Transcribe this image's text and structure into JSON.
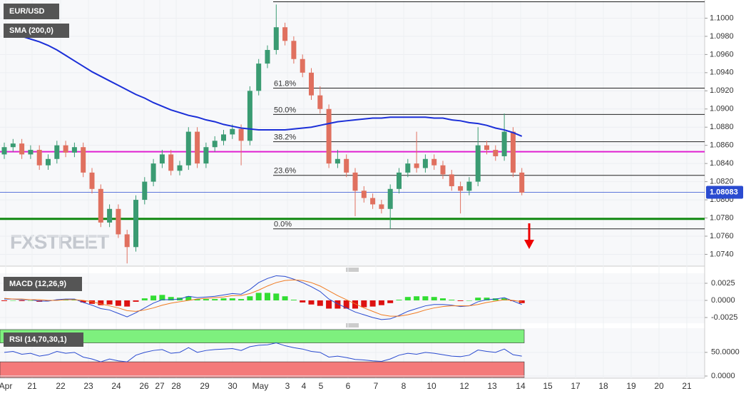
{
  "chart_data": [
    {
      "type": "candlestick",
      "title": "EUR/USD",
      "sma_name": "SMA (200,0)",
      "sma_color": "#1b2fd8",
      "up_color": "#3a9b72",
      "down_color": "#e0705f",
      "watermark": "FXSTREET",
      "ylim": [
        1.0727,
        1.102
      ],
      "yticks": [
        {
          "value": 1.1,
          "label": "1.1000"
        },
        {
          "value": 1.098,
          "label": "1.0980"
        },
        {
          "value": 1.096,
          "label": "1.0960"
        },
        {
          "value": 1.094,
          "label": "1.0940"
        },
        {
          "value": 1.092,
          "label": "1.0920"
        },
        {
          "value": 1.09,
          "label": "1.0900"
        },
        {
          "value": 1.088,
          "label": "1.0880"
        },
        {
          "value": 1.086,
          "label": "1.0860"
        },
        {
          "value": 1.084,
          "label": "1.0840"
        },
        {
          "value": 1.082,
          "label": "1.0820"
        },
        {
          "value": 1.08,
          "label": "1.0800"
        },
        {
          "value": 1.078,
          "label": "1.0780"
        },
        {
          "value": 1.076,
          "label": "1.0760"
        },
        {
          "value": 1.074,
          "label": "1.0740"
        }
      ],
      "xlabels": [
        "Apr",
        "21",
        "22",
        "23",
        "24",
        "26",
        "27",
        "28",
        "29",
        "30",
        "May",
        "3",
        "4",
        "5",
        "6",
        "7",
        "8",
        "10",
        "12",
        "13",
        "14",
        "15",
        "17",
        "18",
        "19",
        "20",
        "21"
      ],
      "open": [
        1.085,
        1.0858,
        1.0862,
        1.085,
        1.0855,
        1.0838,
        1.0845,
        1.086,
        1.0852,
        1.0858,
        1.083,
        1.0812,
        1.0775,
        1.079,
        1.0762,
        1.0748,
        1.08,
        1.082,
        1.084,
        1.085,
        1.0832,
        1.0838,
        1.0875,
        1.084,
        1.0858,
        1.0865,
        1.0872,
        1.0878,
        1.0865,
        1.092,
        1.095,
        1.0965,
        1.099,
        1.0975,
        1.0955,
        1.094,
        1.0915,
        1.09,
        1.084,
        1.0845,
        1.083,
        1.081,
        1.0802,
        1.0795,
        1.079,
        1.0812,
        1.083,
        1.084,
        1.0835,
        1.0845,
        1.0838,
        1.0828,
        1.0815,
        1.081,
        1.082,
        1.086,
        1.0855,
        1.0848,
        1.0875,
        1.083
      ],
      "high": [
        1.0863,
        1.0867,
        1.0867,
        1.086,
        1.086,
        1.085,
        1.0865,
        1.0865,
        1.0863,
        1.0863,
        1.0835,
        1.0817,
        1.0795,
        1.0795,
        1.0767,
        1.0805,
        1.0825,
        1.0845,
        1.0855,
        1.0855,
        1.0843,
        1.088,
        1.088,
        1.0863,
        1.087,
        1.0877,
        1.0883,
        1.0883,
        1.0925,
        1.0955,
        1.097,
        1.1015,
        1.0995,
        1.098,
        1.096,
        1.0945,
        1.0925,
        1.0905,
        1.0855,
        1.085,
        1.0835,
        1.0815,
        1.0807,
        1.08,
        1.0817,
        1.0835,
        1.0845,
        1.0875,
        1.085,
        1.085,
        1.0843,
        1.0833,
        1.082,
        1.0825,
        1.088,
        1.0865,
        1.086,
        1.0895,
        1.088,
        1.0835
      ],
      "low": [
        1.0845,
        1.0853,
        1.0845,
        1.0845,
        1.0833,
        1.0833,
        1.084,
        1.0847,
        1.0847,
        1.0825,
        1.0807,
        1.077,
        1.077,
        1.0758,
        1.073,
        1.0743,
        1.0795,
        1.0815,
        1.0835,
        1.0827,
        1.0827,
        1.0833,
        1.0835,
        1.0835,
        1.0853,
        1.086,
        1.0867,
        1.0838,
        1.086,
        1.0915,
        1.0945,
        1.096,
        1.097,
        1.095,
        1.0935,
        1.091,
        1.0895,
        1.0835,
        1.0835,
        1.0825,
        1.0782,
        1.0797,
        1.079,
        1.0785,
        1.0768,
        1.0807,
        1.0825,
        1.083,
        1.083,
        1.0833,
        1.0823,
        1.081,
        1.0785,
        1.0805,
        1.0815,
        1.085,
        1.0843,
        1.0843,
        1.0825,
        1.0805
      ],
      "close": [
        1.0858,
        1.0862,
        1.085,
        1.0855,
        1.0838,
        1.0845,
        1.086,
        1.0852,
        1.0858,
        1.083,
        1.0812,
        1.0775,
        1.079,
        1.0762,
        1.0748,
        1.08,
        1.082,
        1.084,
        1.085,
        1.0832,
        1.0838,
        1.0875,
        1.084,
        1.0858,
        1.0865,
        1.0872,
        1.0878,
        1.0865,
        1.092,
        1.095,
        1.0965,
        1.099,
        1.0975,
        1.0955,
        1.094,
        1.0915,
        1.09,
        1.084,
        1.0845,
        1.083,
        1.081,
        1.0802,
        1.0795,
        1.079,
        1.0812,
        1.083,
        1.084,
        1.0835,
        1.0845,
        1.0838,
        1.0828,
        1.0815,
        1.081,
        1.082,
        1.086,
        1.0855,
        1.0848,
        1.0875,
        1.083,
        1.0808
      ],
      "sma": [
        1.0987,
        1.0984,
        1.098,
        1.0977,
        1.0974,
        1.097,
        1.0965,
        1.0959,
        1.0953,
        1.0947,
        1.0941,
        1.0936,
        1.0931,
        1.0926,
        1.0921,
        1.0916,
        1.0912,
        1.0907,
        1.0903,
        1.0899,
        1.0896,
        1.0893,
        1.0891,
        1.0888,
        1.0886,
        1.0883,
        1.0881,
        1.0879,
        1.0878,
        1.0877,
        1.0877,
        1.0877,
        1.0877,
        1.0878,
        1.0879,
        1.088,
        1.0882,
        1.0884,
        1.0886,
        1.0887,
        1.0888,
        1.0889,
        1.089,
        1.089,
        1.0891,
        1.0891,
        1.0891,
        1.0891,
        1.0891,
        1.089,
        1.089,
        1.0888,
        1.0887,
        1.0885,
        1.0884,
        1.0882,
        1.0879,
        1.0877,
        1.0874,
        1.087
      ],
      "fib_high": 1.1018,
      "fib_levels": [
        {
          "label": "61.8%",
          "value": 1.0923
        },
        {
          "label": "50.0%",
          "value": 1.0894
        },
        {
          "label": "38.2%",
          "value": 1.0864
        },
        {
          "label": "23.6%",
          "value": 1.0827
        },
        {
          "label": "0.0%",
          "value": 1.0768
        }
      ],
      "magenta_line": 1.0853,
      "support_line": 1.0779,
      "last_price": 1.08083
    },
    {
      "type": "macd",
      "title": "MACD (12,26,9)",
      "macd_color": "#2a4bd0",
      "signal_color": "#f07a20",
      "pos_color": "#33dd33",
      "neg_color": "#dd1111",
      "ylim": [
        -0.00323,
        0.00396
      ],
      "yticks": [
        {
          "value": 0.0025,
          "label": "0.0025"
        },
        {
          "value": 0,
          "label": "0.0000"
        },
        {
          "value": -0.0025,
          "label": "-0.0025"
        }
      ],
      "macd": [
        0.0002,
        0.0002,
        0.0001,
        0.0001,
        -0.0001,
        -0.0001,
        0.0001,
        0.0002,
        0.0002,
        -0.0003,
        -0.0007,
        -0.0012,
        -0.0014,
        -0.0019,
        -0.0024,
        -0.0018,
        -0.0011,
        -0.0004,
        0.0001,
        0.0001,
        0.0002,
        0.0006,
        0.0004,
        0.0005,
        0.0006,
        0.0008,
        0.001,
        0.0009,
        0.0016,
        0.0026,
        0.0032,
        0.0036,
        0.0035,
        0.0031,
        0.0026,
        0.002,
        0.0013,
        0.0002,
        -0.0005,
        -0.0011,
        -0.0017,
        -0.0021,
        -0.0025,
        -0.0028,
        -0.0027,
        -0.0022,
        -0.0016,
        -0.0012,
        -0.0008,
        -0.0006,
        -0.0006,
        -0.0007,
        -0.0009,
        -0.0008,
        -0.0002,
        0.0001,
        0.0002,
        0.0004,
        -0.0001,
        -0.0006
      ],
      "signal": [
        0.0003,
        0.0002,
        0.0002,
        0.0001,
        0.0001,
        0.0,
        0.0,
        0.0001,
        0.0001,
        0.0,
        -0.0002,
        -0.0005,
        -0.0008,
        -0.0011,
        -0.0015,
        -0.0016,
        -0.0014,
        -0.0011,
        -0.0007,
        -0.0004,
        -0.0002,
        0.0,
        0.0002,
        0.0003,
        0.0004,
        0.0005,
        0.0007,
        0.0007,
        0.001,
        0.0015,
        0.0021,
        0.0026,
        0.0029,
        0.003,
        0.0029,
        0.0026,
        0.0021,
        0.0014,
        0.0007,
        0.0001,
        -0.0005,
        -0.0011,
        -0.0016,
        -0.0021,
        -0.0023,
        -0.0023,
        -0.0021,
        -0.0018,
        -0.0014,
        -0.0011,
        -0.0009,
        -0.0008,
        -0.0008,
        -0.0008,
        -0.0006,
        -0.0003,
        -0.0001,
        0.0001,
        0.0,
        -0.0002
      ],
      "histogram": [
        -0.0001,
        0.0,
        -0.0001,
        0.0,
        -0.0002,
        -0.0001,
        0.0001,
        0.0001,
        0.0001,
        -0.0003,
        -0.0005,
        -0.0007,
        -0.0006,
        -0.0008,
        -0.0009,
        -0.0002,
        0.0003,
        0.0007,
        0.0008,
        0.0005,
        0.0004,
        0.0006,
        0.0002,
        0.0002,
        0.0002,
        0.0003,
        0.0003,
        0.0002,
        0.0006,
        0.0011,
        0.0011,
        0.001,
        0.0006,
        0.0001,
        -0.0003,
        -0.0006,
        -0.0008,
        -0.0012,
        -0.0012,
        -0.0012,
        -0.0012,
        -0.001,
        -0.0009,
        -0.0007,
        -0.0004,
        0.0001,
        0.0005,
        0.0006,
        0.0006,
        0.0005,
        0.0003,
        0.0001,
        -0.0001,
        0.0,
        0.0004,
        0.0004,
        0.0003,
        0.0003,
        -0.0001,
        -0.0004
      ]
    },
    {
      "type": "rsi",
      "title": "RSI (14,70,30,1)",
      "color": "#2a4bd0",
      "ylim": [
        -4.5,
        101
      ],
      "yticks": [
        {
          "value": 50,
          "label": "50.0000"
        },
        {
          "value": 0,
          "label": "0.0000"
        }
      ],
      "levels": [
        30,
        70
      ],
      "upper_color": "#7ef07e",
      "lower_color": "#f47a7a",
      "values": [
        50,
        52,
        46,
        48,
        42,
        45,
        52,
        48,
        50,
        40,
        36,
        30,
        36,
        32,
        30,
        44,
        50,
        54,
        56,
        48,
        50,
        60,
        50,
        54,
        56,
        57,
        58,
        54,
        62,
        65,
        66,
        70,
        64,
        60,
        57,
        52,
        50,
        40,
        42,
        39,
        35,
        34,
        32,
        31,
        36,
        44,
        48,
        46,
        50,
        48,
        45,
        42,
        41,
        44,
        55,
        52,
        50,
        57,
        45,
        42
      ]
    }
  ]
}
